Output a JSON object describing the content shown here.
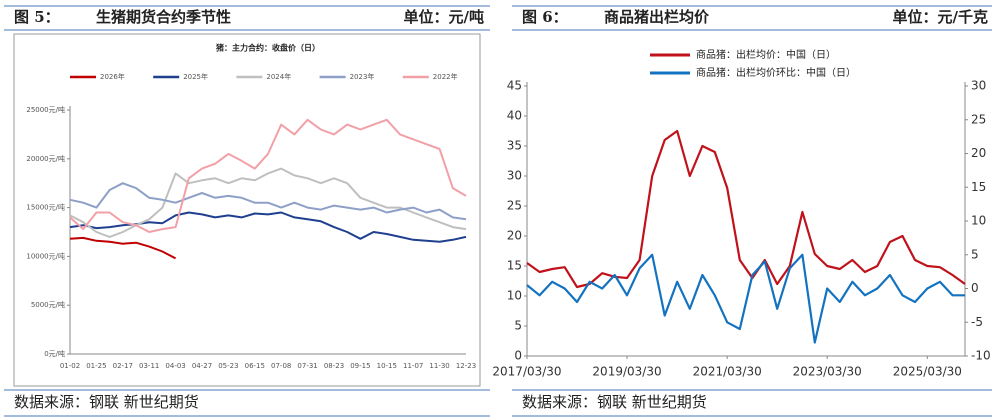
{
  "chart_data": [
    {
      "type": "line",
      "figure_label": "图 5：",
      "title": "生猪期货合约季节性",
      "unit": "单位：元/吨",
      "subtitle": "猪：主力合约：收盘价（日）",
      "source": "数据来源：钢联 新世纪期货",
      "categories": [
        "01-02",
        null,
        "01-25",
        null,
        "02-17",
        null,
        "03-11",
        null,
        "04-03",
        null,
        "04-27",
        null,
        "05-23",
        null,
        "06-15",
        null,
        "07-08",
        null,
        "07-31",
        null,
        "08-23",
        null,
        "09-15",
        null,
        "10-15",
        null,
        "11-07",
        null,
        "11-30",
        null,
        "12-23"
      ],
      "ylim": [
        0,
        25000
      ],
      "yticks": [
        {
          "value": 0,
          "label": "0元/吨"
        },
        {
          "value": 5000,
          "label": "5000元/吨"
        },
        {
          "value": 10000,
          "label": "10000元/吨"
        },
        {
          "value": 15000,
          "label": "15000元/吨"
        },
        {
          "value": 20000,
          "label": "20000元/吨"
        },
        {
          "value": 25000,
          "label": "25000元/吨"
        }
      ],
      "series": [
        {
          "name": "2026年",
          "color": "#c00000",
          "values": [
            11800,
            11900,
            11600,
            11500,
            11300,
            11400,
            11000,
            10500,
            9800,
            null,
            null,
            null,
            null,
            null,
            null,
            null,
            null,
            null,
            null,
            null,
            null,
            null,
            null,
            null,
            null,
            null,
            null,
            null,
            null,
            null,
            null
          ]
        },
        {
          "name": "2025年",
          "color": "#1f3f8f",
          "values": [
            13000,
            13200,
            12900,
            13000,
            13200,
            13300,
            13500,
            13400,
            14200,
            14500,
            14300,
            14000,
            14200,
            14000,
            14400,
            14300,
            14500,
            14000,
            13800,
            13600,
            13000,
            12500,
            11800,
            12500,
            12300,
            12000,
            11700,
            11600,
            11500,
            11700,
            12000
          ]
        },
        {
          "name": "2024年",
          "color": "#bfbfbf",
          "values": [
            14200,
            13500,
            12500,
            12000,
            12500,
            13200,
            13800,
            15000,
            18500,
            17500,
            17800,
            18000,
            17500,
            18000,
            17800,
            18500,
            19000,
            18300,
            18000,
            17500,
            18000,
            17500,
            16000,
            15500,
            15000,
            15000,
            14500,
            14000,
            13500,
            13000,
            12800
          ]
        },
        {
          "name": "2023年",
          "color": "#8ea0c8",
          "values": [
            15800,
            15500,
            15000,
            16800,
            17500,
            17000,
            16000,
            15800,
            15500,
            16000,
            16500,
            16000,
            16200,
            16000,
            15500,
            15500,
            15000,
            15500,
            15000,
            14800,
            15200,
            15000,
            14800,
            15000,
            14500,
            14800,
            15000,
            14500,
            14800,
            14000,
            13800
          ]
        },
        {
          "name": "2022年",
          "color": "#f2a0a8",
          "values": [
            14000,
            12800,
            14500,
            14500,
            13500,
            13200,
            12500,
            12800,
            13000,
            18000,
            19000,
            19500,
            20500,
            19800,
            19000,
            20500,
            23500,
            22500,
            24000,
            23000,
            22500,
            23500,
            23000,
            23500,
            24000,
            22500,
            22000,
            21500,
            21000,
            17000,
            16200
          ]
        }
      ]
    },
    {
      "type": "line",
      "figure_label": "图 6：",
      "title": "商品猪出栏均价",
      "unit": "单位：元/千克",
      "source": "数据来源：钢联 新世纪期货",
      "x": [
        "2017/03/30",
        "2017/06/30",
        "2017/09/30",
        "2017/12/30",
        "2018/03/30",
        "2018/06/30",
        "2018/09/30",
        "2018/12/30",
        "2019/03/30",
        "2019/06/30",
        "2019/09/30",
        "2019/12/30",
        "2020/03/30",
        "2020/06/30",
        "2020/09/30",
        "2020/12/30",
        "2021/03/30",
        "2021/06/30",
        "2021/09/30",
        "2021/12/30",
        "2022/03/30",
        "2022/06/30",
        "2022/09/30",
        "2022/12/30",
        "2023/03/30",
        "2023/06/30",
        "2023/09/30",
        "2023/12/30",
        "2024/03/30",
        "2024/06/30",
        "2024/09/30",
        "2024/12/30",
        "2025/03/30",
        "2025/06/30",
        "2025/09/30",
        "2025/12/30"
      ],
      "xlim": [
        "2017/03/30",
        "2025/12/30"
      ],
      "xticks": [
        "2017/03/30",
        "2019/03/30",
        "2021/03/30",
        "2023/03/30",
        "2025/03/30"
      ],
      "ylim": [
        0,
        45
      ],
      "yticks": [
        0,
        5,
        10,
        15,
        20,
        25,
        30,
        35,
        40,
        45
      ],
      "y2lim": [
        -10,
        30
      ],
      "y2ticks": [
        -10,
        -5,
        0,
        5,
        10,
        15,
        20,
        25,
        30
      ],
      "series": [
        {
          "name": "商品猪：出栏均价：中国（日）",
          "color": "#c0121b",
          "values": [
            15.5,
            14,
            14.5,
            14.8,
            11.5,
            12,
            13.8,
            13.2,
            13,
            16,
            30,
            36,
            37.5,
            30,
            35,
            34,
            28,
            16,
            13,
            16,
            12,
            15,
            24,
            17,
            15,
            14.5,
            16,
            14,
            15,
            19,
            20,
            16,
            15,
            14.8,
            13.5,
            12
          ]
        },
        {
          "name": "商品猪：出栏均价环比：中国（日）",
          "color": "#1473c0",
          "axis": "y2",
          "values": [
            0.5,
            -1,
            1,
            0,
            -2,
            1,
            0,
            2,
            -1,
            3,
            5,
            -4,
            1,
            -3,
            2,
            -1,
            -5,
            -6,
            2,
            4,
            -3,
            3,
            5,
            -8,
            0,
            -2,
            1,
            -1,
            0,
            2,
            -1,
            -2,
            0,
            1,
            -1,
            -1
          ]
        }
      ]
    }
  ]
}
